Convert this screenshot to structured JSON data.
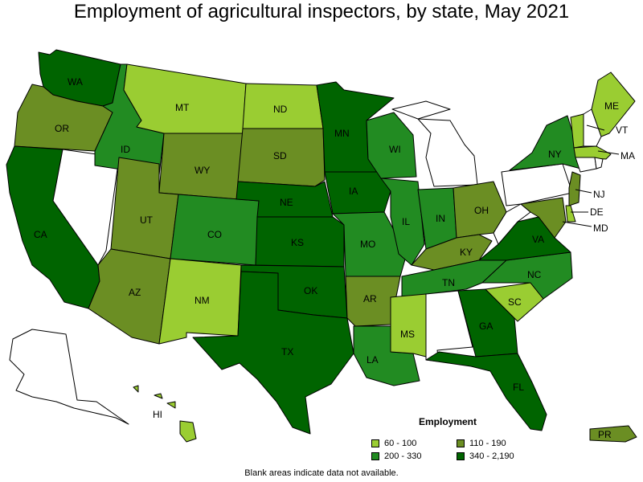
{
  "title": "Employment of agricultural inspectors, by state, May 2021",
  "legend": {
    "title": "Employment",
    "bins": [
      {
        "label": "60 - 100",
        "color": "#9acd32"
      },
      {
        "label": "110 - 190",
        "color": "#6b8e23"
      },
      {
        "label": "200 - 330",
        "color": "#228b22"
      },
      {
        "label": "340 - 2,190",
        "color": "#006400"
      }
    ]
  },
  "footnote": "Blank areas indicate data not available.",
  "states": {
    "WA": {
      "bin": 3
    },
    "OR": {
      "bin": 1
    },
    "CA": {
      "bin": 3
    },
    "ID": {
      "bin": 2
    },
    "NV": {
      "bin": null
    },
    "MT": {
      "bin": 0
    },
    "WY": {
      "bin": 1
    },
    "UT": {
      "bin": 1
    },
    "AZ": {
      "bin": 1
    },
    "CO": {
      "bin": 2
    },
    "NM": {
      "bin": 0
    },
    "ND": {
      "bin": 0
    },
    "SD": {
      "bin": 1
    },
    "NE": {
      "bin": 3
    },
    "KS": {
      "bin": 3
    },
    "OK": {
      "bin": 3
    },
    "TX": {
      "bin": 3
    },
    "MN": {
      "bin": 3
    },
    "IA": {
      "bin": 3
    },
    "MO": {
      "bin": 2
    },
    "AR": {
      "bin": 1
    },
    "LA": {
      "bin": 2
    },
    "WI": {
      "bin": 2
    },
    "IL": {
      "bin": 2
    },
    "MI": {
      "bin": null
    },
    "IN": {
      "bin": 2
    },
    "OH": {
      "bin": 1
    },
    "KY": {
      "bin": 1
    },
    "TN": {
      "bin": 2
    },
    "MS": {
      "bin": 0
    },
    "AL": {
      "bin": null
    },
    "GA": {
      "bin": 3
    },
    "FL": {
      "bin": 3
    },
    "SC": {
      "bin": 0
    },
    "NC": {
      "bin": 2
    },
    "VA": {
      "bin": 3
    },
    "WV": {
      "bin": null
    },
    "PA": {
      "bin": null
    },
    "NY": {
      "bin": 2
    },
    "VT": {
      "bin": 0
    },
    "NH": {
      "bin": null
    },
    "ME": {
      "bin": 0
    },
    "MA": {
      "bin": 0
    },
    "CT": {
      "bin": null
    },
    "RI": {
      "bin": null
    },
    "NJ": {
      "bin": 1
    },
    "DE": {
      "bin": 0
    },
    "MD": {
      "bin": 1
    },
    "AK": {
      "bin": null
    },
    "HI": {
      "bin": 0
    },
    "PR": {
      "bin": 1
    }
  },
  "labels": {
    "WA": "WA",
    "OR": "OR",
    "CA": "CA",
    "ID": "ID",
    "MT": "MT",
    "WY": "WY",
    "UT": "UT",
    "AZ": "AZ",
    "CO": "CO",
    "NM": "NM",
    "ND": "ND",
    "SD": "SD",
    "NE": "NE",
    "KS": "KS",
    "OK": "OK",
    "TX": "TX",
    "MN": "MN",
    "IA": "IA",
    "MO": "MO",
    "AR": "AR",
    "LA": "LA",
    "WI": "WI",
    "IL": "IL",
    "IN": "IN",
    "OH": "OH",
    "KY": "KY",
    "TN": "TN",
    "MS": "MS",
    "GA": "GA",
    "FL": "FL",
    "SC": "SC",
    "NC": "NC",
    "VA": "VA",
    "NY": "NY",
    "VT": "VT",
    "ME": "ME",
    "MA": "MA",
    "NJ": "NJ",
    "DE": "DE",
    "MD": "MD",
    "HI": "HI",
    "PR": "PR"
  }
}
